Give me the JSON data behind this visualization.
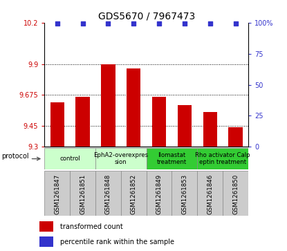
{
  "title": "GDS5670 / 7967473",
  "samples": [
    "GSM1261847",
    "GSM1261851",
    "GSM1261848",
    "GSM1261852",
    "GSM1261849",
    "GSM1261853",
    "GSM1261846",
    "GSM1261850"
  ],
  "bar_values": [
    9.62,
    9.66,
    9.9,
    9.87,
    9.66,
    9.6,
    9.55,
    9.44
  ],
  "percentile_values": [
    99,
    99,
    99,
    99,
    99,
    99,
    99,
    99
  ],
  "ylim_left": [
    9.3,
    10.2
  ],
  "ylim_right": [
    0,
    100
  ],
  "yticks_left": [
    9.3,
    9.45,
    9.675,
    9.9,
    10.2
  ],
  "yticks_right": [
    0,
    25,
    50,
    75,
    100
  ],
  "ytick_labels_left": [
    "9.3",
    "9.45",
    "9.675",
    "9.9",
    "10.2"
  ],
  "ytick_labels_right": [
    "0",
    "25",
    "50",
    "75",
    "100%"
  ],
  "hlines": [
    9.9,
    9.675,
    9.45
  ],
  "bar_color": "#cc0000",
  "dot_color": "#3333cc",
  "proto_groups": [
    {
      "label": "control",
      "indices": [
        0,
        1
      ],
      "color": "#ccffcc"
    },
    {
      "label": "EphA2-overexpres\nsion",
      "indices": [
        2,
        3
      ],
      "color": "#ccffcc"
    },
    {
      "label": "Ilomastat\ntreatment",
      "indices": [
        4,
        5
      ],
      "color": "#33cc33"
    },
    {
      "label": "Rho activator Calp\neptin treatment",
      "indices": [
        6,
        7
      ],
      "color": "#33cc33"
    }
  ],
  "legend_bar_label": "transformed count",
  "legend_dot_label": "percentile rank within the sample",
  "protocol_label": "protocol",
  "bar_width": 0.55,
  "xlabels_box_color": "#cccccc",
  "xlabels_box_edge": "#888888"
}
